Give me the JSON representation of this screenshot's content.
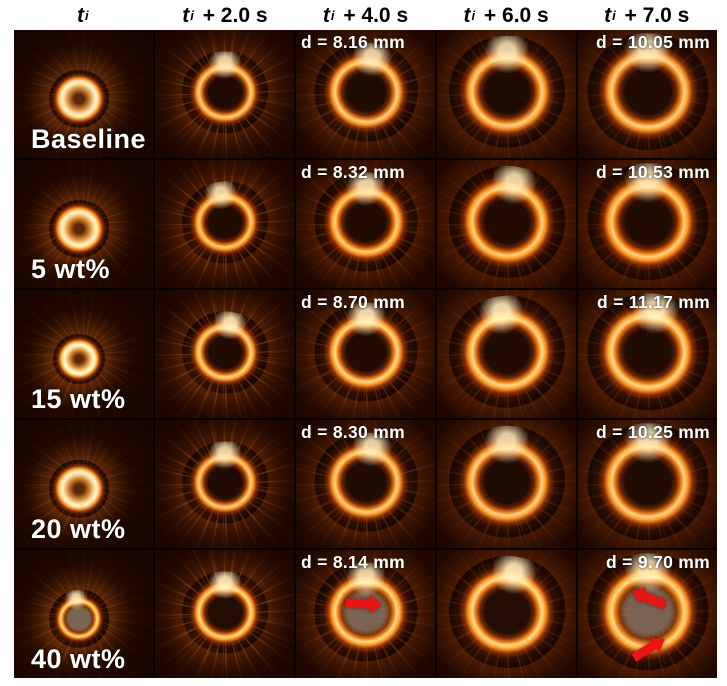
{
  "figure": {
    "header": {
      "cols": [
        {
          "base": "t",
          "sub": "i",
          "suffix": ""
        },
        {
          "base": "t",
          "sub": "i",
          "suffix": " + 2.0 s"
        },
        {
          "base": "t",
          "sub": "i",
          "suffix": " + 4.0 s"
        },
        {
          "base": "t",
          "sub": "i",
          "suffix": " + 6.0 s"
        },
        {
          "base": "t",
          "sub": "i",
          "suffix": " + 7.0 s"
        }
      ]
    },
    "rows": [
      {
        "label": "Baseline",
        "d_4s": "d = 8.16 mm",
        "d_7s": "d = 10.05 mm"
      },
      {
        "label": "5 wt%",
        "d_4s": "d = 8.32 mm",
        "d_7s": "d = 10.53 mm"
      },
      {
        "label": "15 wt%",
        "d_4s": "d = 8.70 mm",
        "d_7s": "d = 11.17 mm"
      },
      {
        "label": "20 wt%",
        "d_4s": "d = 8.30 mm",
        "d_7s": "d = 10.25 mm"
      },
      {
        "label": "40 wt%",
        "d_4s": "d = 8.14 mm",
        "d_7s": "d = 9.70 mm"
      }
    ],
    "annotations": {
      "arrow_color": "#e01212",
      "arrows": [
        {
          "row": "40 wt%",
          "col": "t_i + 4.0 s",
          "direction": "right"
        },
        {
          "row": "40 wt%",
          "col": "t_i + 7.0 s",
          "direction": "down-left"
        },
        {
          "row": "40 wt%",
          "col": "t_i + 7.0 s",
          "direction": "up-right"
        }
      ]
    },
    "colors": {
      "header_text": "#000000",
      "label_text": "#ffffff",
      "flame_bright": "#ffe3a6",
      "flame_mid": "#ff9a26",
      "flame_deep": "#a33a05",
      "background_dark": "#180701",
      "page_background": "#ffffff"
    }
  }
}
